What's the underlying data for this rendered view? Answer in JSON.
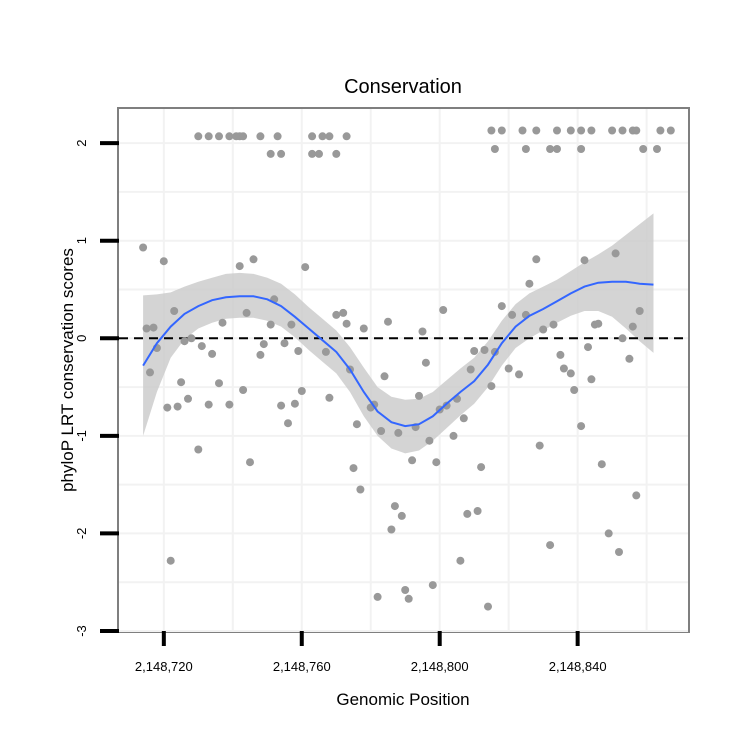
{
  "chart_data": {
    "type": "scatter",
    "title": "Conservation",
    "xlabel": "Genomic Position",
    "ylabel": "phyloP LRT conservation scores",
    "xlim": [
      2148707,
      2148872
    ],
    "ylim": [
      -3,
      2.35
    ],
    "x_ticks": [
      2148720,
      2148760,
      2148800,
      2148840
    ],
    "x_tick_labels": [
      "2,148,720",
      "2,148,760",
      "2,148,800",
      "2,148,840"
    ],
    "y_ticks": [
      -3,
      -2,
      -1,
      0,
      1,
      2
    ],
    "y_tick_labels": [
      "-3",
      "-2",
      "-1",
      "0",
      "1",
      "2"
    ],
    "reference_line": {
      "y": 0,
      "style": "dashed"
    },
    "grid": true,
    "point_color": "#999999",
    "smooth_color": "#3366ff",
    "band_color": "#cccccc",
    "points": [
      {
        "x": 2148714,
        "y": 0.93
      },
      {
        "x": 2148715,
        "y": 0.1
      },
      {
        "x": 2148716,
        "y": -0.35
      },
      {
        "x": 2148717,
        "y": 0.11
      },
      {
        "x": 2148718,
        "y": -0.1
      },
      {
        "x": 2148720,
        "y": 0.79
      },
      {
        "x": 2148721,
        "y": -0.71
      },
      {
        "x": 2148722,
        "y": -2.28
      },
      {
        "x": 2148723,
        "y": 0.28
      },
      {
        "x": 2148724,
        "y": -0.7
      },
      {
        "x": 2148725,
        "y": -0.45
      },
      {
        "x": 2148726,
        "y": -0.03
      },
      {
        "x": 2148727,
        "y": -0.62
      },
      {
        "x": 2148728,
        "y": 0.0
      },
      {
        "x": 2148730,
        "y": -1.14
      },
      {
        "x": 2148731,
        "y": -0.08
      },
      {
        "x": 2148733,
        "y": -0.68
      },
      {
        "x": 2148734,
        "y": -0.16
      },
      {
        "x": 2148736,
        "y": -0.46
      },
      {
        "x": 2148737,
        "y": 0.16
      },
      {
        "x": 2148739,
        "y": -0.68
      },
      {
        "x": 2148742,
        "y": 0.74
      },
      {
        "x": 2148743,
        "y": -0.53
      },
      {
        "x": 2148744,
        "y": 0.26
      },
      {
        "x": 2148745,
        "y": -1.27
      },
      {
        "x": 2148746,
        "y": 0.81
      },
      {
        "x": 2148748,
        "y": -0.17
      },
      {
        "x": 2148749,
        "y": -0.06
      },
      {
        "x": 2148751,
        "y": 0.14
      },
      {
        "x": 2148752,
        "y": 0.4
      },
      {
        "x": 2148754,
        "y": -0.69
      },
      {
        "x": 2148755,
        "y": -0.05
      },
      {
        "x": 2148756,
        "y": -0.87
      },
      {
        "x": 2148757,
        "y": 0.14
      },
      {
        "x": 2148758,
        "y": -0.67
      },
      {
        "x": 2148759,
        "y": -0.13
      },
      {
        "x": 2148760,
        "y": -0.54
      },
      {
        "x": 2148761,
        "y": 0.73
      },
      {
        "x": 2148767,
        "y": -0.14
      },
      {
        "x": 2148768,
        "y": -0.61
      },
      {
        "x": 2148770,
        "y": 0.24
      },
      {
        "x": 2148772,
        "y": 0.26
      },
      {
        "x": 2148773,
        "y": 0.15
      },
      {
        "x": 2148774,
        "y": -0.32
      },
      {
        "x": 2148775,
        "y": -1.33
      },
      {
        "x": 2148776,
        "y": -0.88
      },
      {
        "x": 2148777,
        "y": -1.55
      },
      {
        "x": 2148778,
        "y": 0.1
      },
      {
        "x": 2148780,
        "y": -0.71
      },
      {
        "x": 2148781,
        "y": -0.68
      },
      {
        "x": 2148782,
        "y": -2.65
      },
      {
        "x": 2148783,
        "y": -0.95
      },
      {
        "x": 2148784,
        "y": -0.39
      },
      {
        "x": 2148785,
        "y": 0.17
      },
      {
        "x": 2148786,
        "y": -1.96
      },
      {
        "x": 2148787,
        "y": -1.72
      },
      {
        "x": 2148788,
        "y": -0.97
      },
      {
        "x": 2148789,
        "y": -1.82
      },
      {
        "x": 2148790,
        "y": -2.58
      },
      {
        "x": 2148791,
        "y": -2.67
      },
      {
        "x": 2148792,
        "y": -1.25
      },
      {
        "x": 2148793,
        "y": -0.91
      },
      {
        "x": 2148794,
        "y": -0.59
      },
      {
        "x": 2148795,
        "y": 0.07
      },
      {
        "x": 2148796,
        "y": -0.25
      },
      {
        "x": 2148797,
        "y": -1.05
      },
      {
        "x": 2148798,
        "y": -2.53
      },
      {
        "x": 2148799,
        "y": -1.27
      },
      {
        "x": 2148800,
        "y": -0.73
      },
      {
        "x": 2148801,
        "y": 0.29
      },
      {
        "x": 2148802,
        "y": -0.69
      },
      {
        "x": 2148804,
        "y": -1.0
      },
      {
        "x": 2148805,
        "y": -0.62
      },
      {
        "x": 2148806,
        "y": -2.28
      },
      {
        "x": 2148807,
        "y": -0.82
      },
      {
        "x": 2148808,
        "y": -1.8
      },
      {
        "x": 2148809,
        "y": -0.32
      },
      {
        "x": 2148810,
        "y": -0.13
      },
      {
        "x": 2148811,
        "y": -1.77
      },
      {
        "x": 2148812,
        "y": -1.32
      },
      {
        "x": 2148813,
        "y": -0.12
      },
      {
        "x": 2148814,
        "y": -2.75
      },
      {
        "x": 2148815,
        "y": -0.49
      },
      {
        "x": 2148816,
        "y": -0.14
      },
      {
        "x": 2148818,
        "y": 0.33
      },
      {
        "x": 2148820,
        "y": -0.31
      },
      {
        "x": 2148821,
        "y": 0.24
      },
      {
        "x": 2148823,
        "y": -0.37
      },
      {
        "x": 2148825,
        "y": 0.24
      },
      {
        "x": 2148826,
        "y": 0.56
      },
      {
        "x": 2148828,
        "y": 0.81
      },
      {
        "x": 2148829,
        "y": -1.1
      },
      {
        "x": 2148830,
        "y": 0.09
      },
      {
        "x": 2148832,
        "y": -2.12
      },
      {
        "x": 2148833,
        "y": 0.14
      },
      {
        "x": 2148835,
        "y": -0.17
      },
      {
        "x": 2148836,
        "y": -0.31
      },
      {
        "x": 2148838,
        "y": -0.36
      },
      {
        "x": 2148839,
        "y": -0.53
      },
      {
        "x": 2148841,
        "y": -0.9
      },
      {
        "x": 2148842,
        "y": 0.8
      },
      {
        "x": 2148843,
        "y": -0.09
      },
      {
        "x": 2148844,
        "y": -0.42
      },
      {
        "x": 2148845,
        "y": 0.14
      },
      {
        "x": 2148846,
        "y": 0.15
      },
      {
        "x": 2148847,
        "y": -1.29
      },
      {
        "x": 2148849,
        "y": -2.0
      },
      {
        "x": 2148851,
        "y": 0.87
      },
      {
        "x": 2148852,
        "y": -2.19
      },
      {
        "x": 2148853,
        "y": 0.0
      },
      {
        "x": 2148855,
        "y": -0.21
      },
      {
        "x": 2148856,
        "y": 0.12
      },
      {
        "x": 2148857,
        "y": -1.61
      },
      {
        "x": 2148858,
        "y": 0.28
      },
      {
        "x": 2148730,
        "y": 2.07
      },
      {
        "x": 2148733,
        "y": 2.07
      },
      {
        "x": 2148736,
        "y": 2.07
      },
      {
        "x": 2148739,
        "y": 2.07
      },
      {
        "x": 2148741,
        "y": 2.07
      },
      {
        "x": 2148742,
        "y": 2.07
      },
      {
        "x": 2148743,
        "y": 2.07
      },
      {
        "x": 2148748,
        "y": 2.07
      },
      {
        "x": 2148753,
        "y": 2.07
      },
      {
        "x": 2148763,
        "y": 2.07
      },
      {
        "x": 2148766,
        "y": 2.07
      },
      {
        "x": 2148768,
        "y": 2.07
      },
      {
        "x": 2148773,
        "y": 2.07
      },
      {
        "x": 2148751,
        "y": 1.89
      },
      {
        "x": 2148754,
        "y": 1.89
      },
      {
        "x": 2148763,
        "y": 1.89
      },
      {
        "x": 2148765,
        "y": 1.89
      },
      {
        "x": 2148770,
        "y": 1.89
      },
      {
        "x": 2148815,
        "y": 2.13
      },
      {
        "x": 2148818,
        "y": 2.13
      },
      {
        "x": 2148824,
        "y": 2.13
      },
      {
        "x": 2148828,
        "y": 2.13
      },
      {
        "x": 2148834,
        "y": 2.13
      },
      {
        "x": 2148838,
        "y": 2.13
      },
      {
        "x": 2148841,
        "y": 2.13
      },
      {
        "x": 2148844,
        "y": 2.13
      },
      {
        "x": 2148850,
        "y": 2.13
      },
      {
        "x": 2148853,
        "y": 2.13
      },
      {
        "x": 2148856,
        "y": 2.13
      },
      {
        "x": 2148857,
        "y": 2.13
      },
      {
        "x": 2148864,
        "y": 2.13
      },
      {
        "x": 2148867,
        "y": 2.13
      },
      {
        "x": 2148816,
        "y": 1.94
      },
      {
        "x": 2148825,
        "y": 1.94
      },
      {
        "x": 2148832,
        "y": 1.94
      },
      {
        "x": 2148834,
        "y": 1.94
      },
      {
        "x": 2148841,
        "y": 1.94
      },
      {
        "x": 2148859,
        "y": 1.94
      },
      {
        "x": 2148863,
        "y": 1.94
      }
    ],
    "smooth": [
      {
        "x": 2148714,
        "y": -0.28,
        "lo": -1.0,
        "hi": 0.44
      },
      {
        "x": 2148718,
        "y": -0.05,
        "lo": -0.55,
        "hi": 0.45
      },
      {
        "x": 2148722,
        "y": 0.12,
        "lo": -0.2,
        "hi": 0.47
      },
      {
        "x": 2148726,
        "y": 0.25,
        "lo": -0.01,
        "hi": 0.53
      },
      {
        "x": 2148730,
        "y": 0.33,
        "lo": 0.1,
        "hi": 0.58
      },
      {
        "x": 2148734,
        "y": 0.39,
        "lo": 0.16,
        "hi": 0.62
      },
      {
        "x": 2148738,
        "y": 0.42,
        "lo": 0.2,
        "hi": 0.66
      },
      {
        "x": 2148742,
        "y": 0.43,
        "lo": 0.21,
        "hi": 0.67
      },
      {
        "x": 2148746,
        "y": 0.43,
        "lo": 0.21,
        "hi": 0.66
      },
      {
        "x": 2148750,
        "y": 0.4,
        "lo": 0.18,
        "hi": 0.62
      },
      {
        "x": 2148754,
        "y": 0.33,
        "lo": 0.12,
        "hi": 0.56
      },
      {
        "x": 2148758,
        "y": 0.22,
        "lo": 0.01,
        "hi": 0.45
      },
      {
        "x": 2148762,
        "y": 0.1,
        "lo": -0.12,
        "hi": 0.32
      },
      {
        "x": 2148766,
        "y": -0.02,
        "lo": -0.24,
        "hi": 0.2
      },
      {
        "x": 2148770,
        "y": -0.14,
        "lo": -0.36,
        "hi": 0.08
      },
      {
        "x": 2148774,
        "y": -0.32,
        "lo": -0.55,
        "hi": -0.09
      },
      {
        "x": 2148778,
        "y": -0.55,
        "lo": -0.8,
        "hi": -0.3
      },
      {
        "x": 2148782,
        "y": -0.75,
        "lo": -1.0,
        "hi": -0.5
      },
      {
        "x": 2148786,
        "y": -0.86,
        "lo": -1.13,
        "hi": -0.6
      },
      {
        "x": 2148790,
        "y": -0.9,
        "lo": -1.18,
        "hi": -0.63
      },
      {
        "x": 2148794,
        "y": -0.88,
        "lo": -1.15,
        "hi": -0.62
      },
      {
        "x": 2148798,
        "y": -0.8,
        "lo": -1.05,
        "hi": -0.55
      },
      {
        "x": 2148802,
        "y": -0.67,
        "lo": -0.92,
        "hi": -0.43
      },
      {
        "x": 2148806,
        "y": -0.55,
        "lo": -0.79,
        "hi": -0.31
      },
      {
        "x": 2148810,
        "y": -0.44,
        "lo": -0.67,
        "hi": -0.2
      },
      {
        "x": 2148814,
        "y": -0.27,
        "lo": -0.5,
        "hi": -0.03
      },
      {
        "x": 2148818,
        "y": -0.05,
        "lo": -0.28,
        "hi": 0.18
      },
      {
        "x": 2148822,
        "y": 0.12,
        "lo": -0.1,
        "hi": 0.35
      },
      {
        "x": 2148826,
        "y": 0.23,
        "lo": 0.0,
        "hi": 0.46
      },
      {
        "x": 2148830,
        "y": 0.3,
        "lo": 0.08,
        "hi": 0.53
      },
      {
        "x": 2148834,
        "y": 0.38,
        "lo": 0.16,
        "hi": 0.6
      },
      {
        "x": 2148838,
        "y": 0.46,
        "lo": 0.23,
        "hi": 0.69
      },
      {
        "x": 2148842,
        "y": 0.53,
        "lo": 0.28,
        "hi": 0.78
      },
      {
        "x": 2148846,
        "y": 0.57,
        "lo": 0.28,
        "hi": 0.86
      },
      {
        "x": 2148850,
        "y": 0.58,
        "lo": 0.22,
        "hi": 0.95
      },
      {
        "x": 2148854,
        "y": 0.58,
        "lo": 0.1,
        "hi": 1.06
      },
      {
        "x": 2148858,
        "y": 0.56,
        "lo": -0.03,
        "hi": 1.17
      },
      {
        "x": 2148862,
        "y": 0.55,
        "lo": -0.15,
        "hi": 1.28
      }
    ]
  }
}
